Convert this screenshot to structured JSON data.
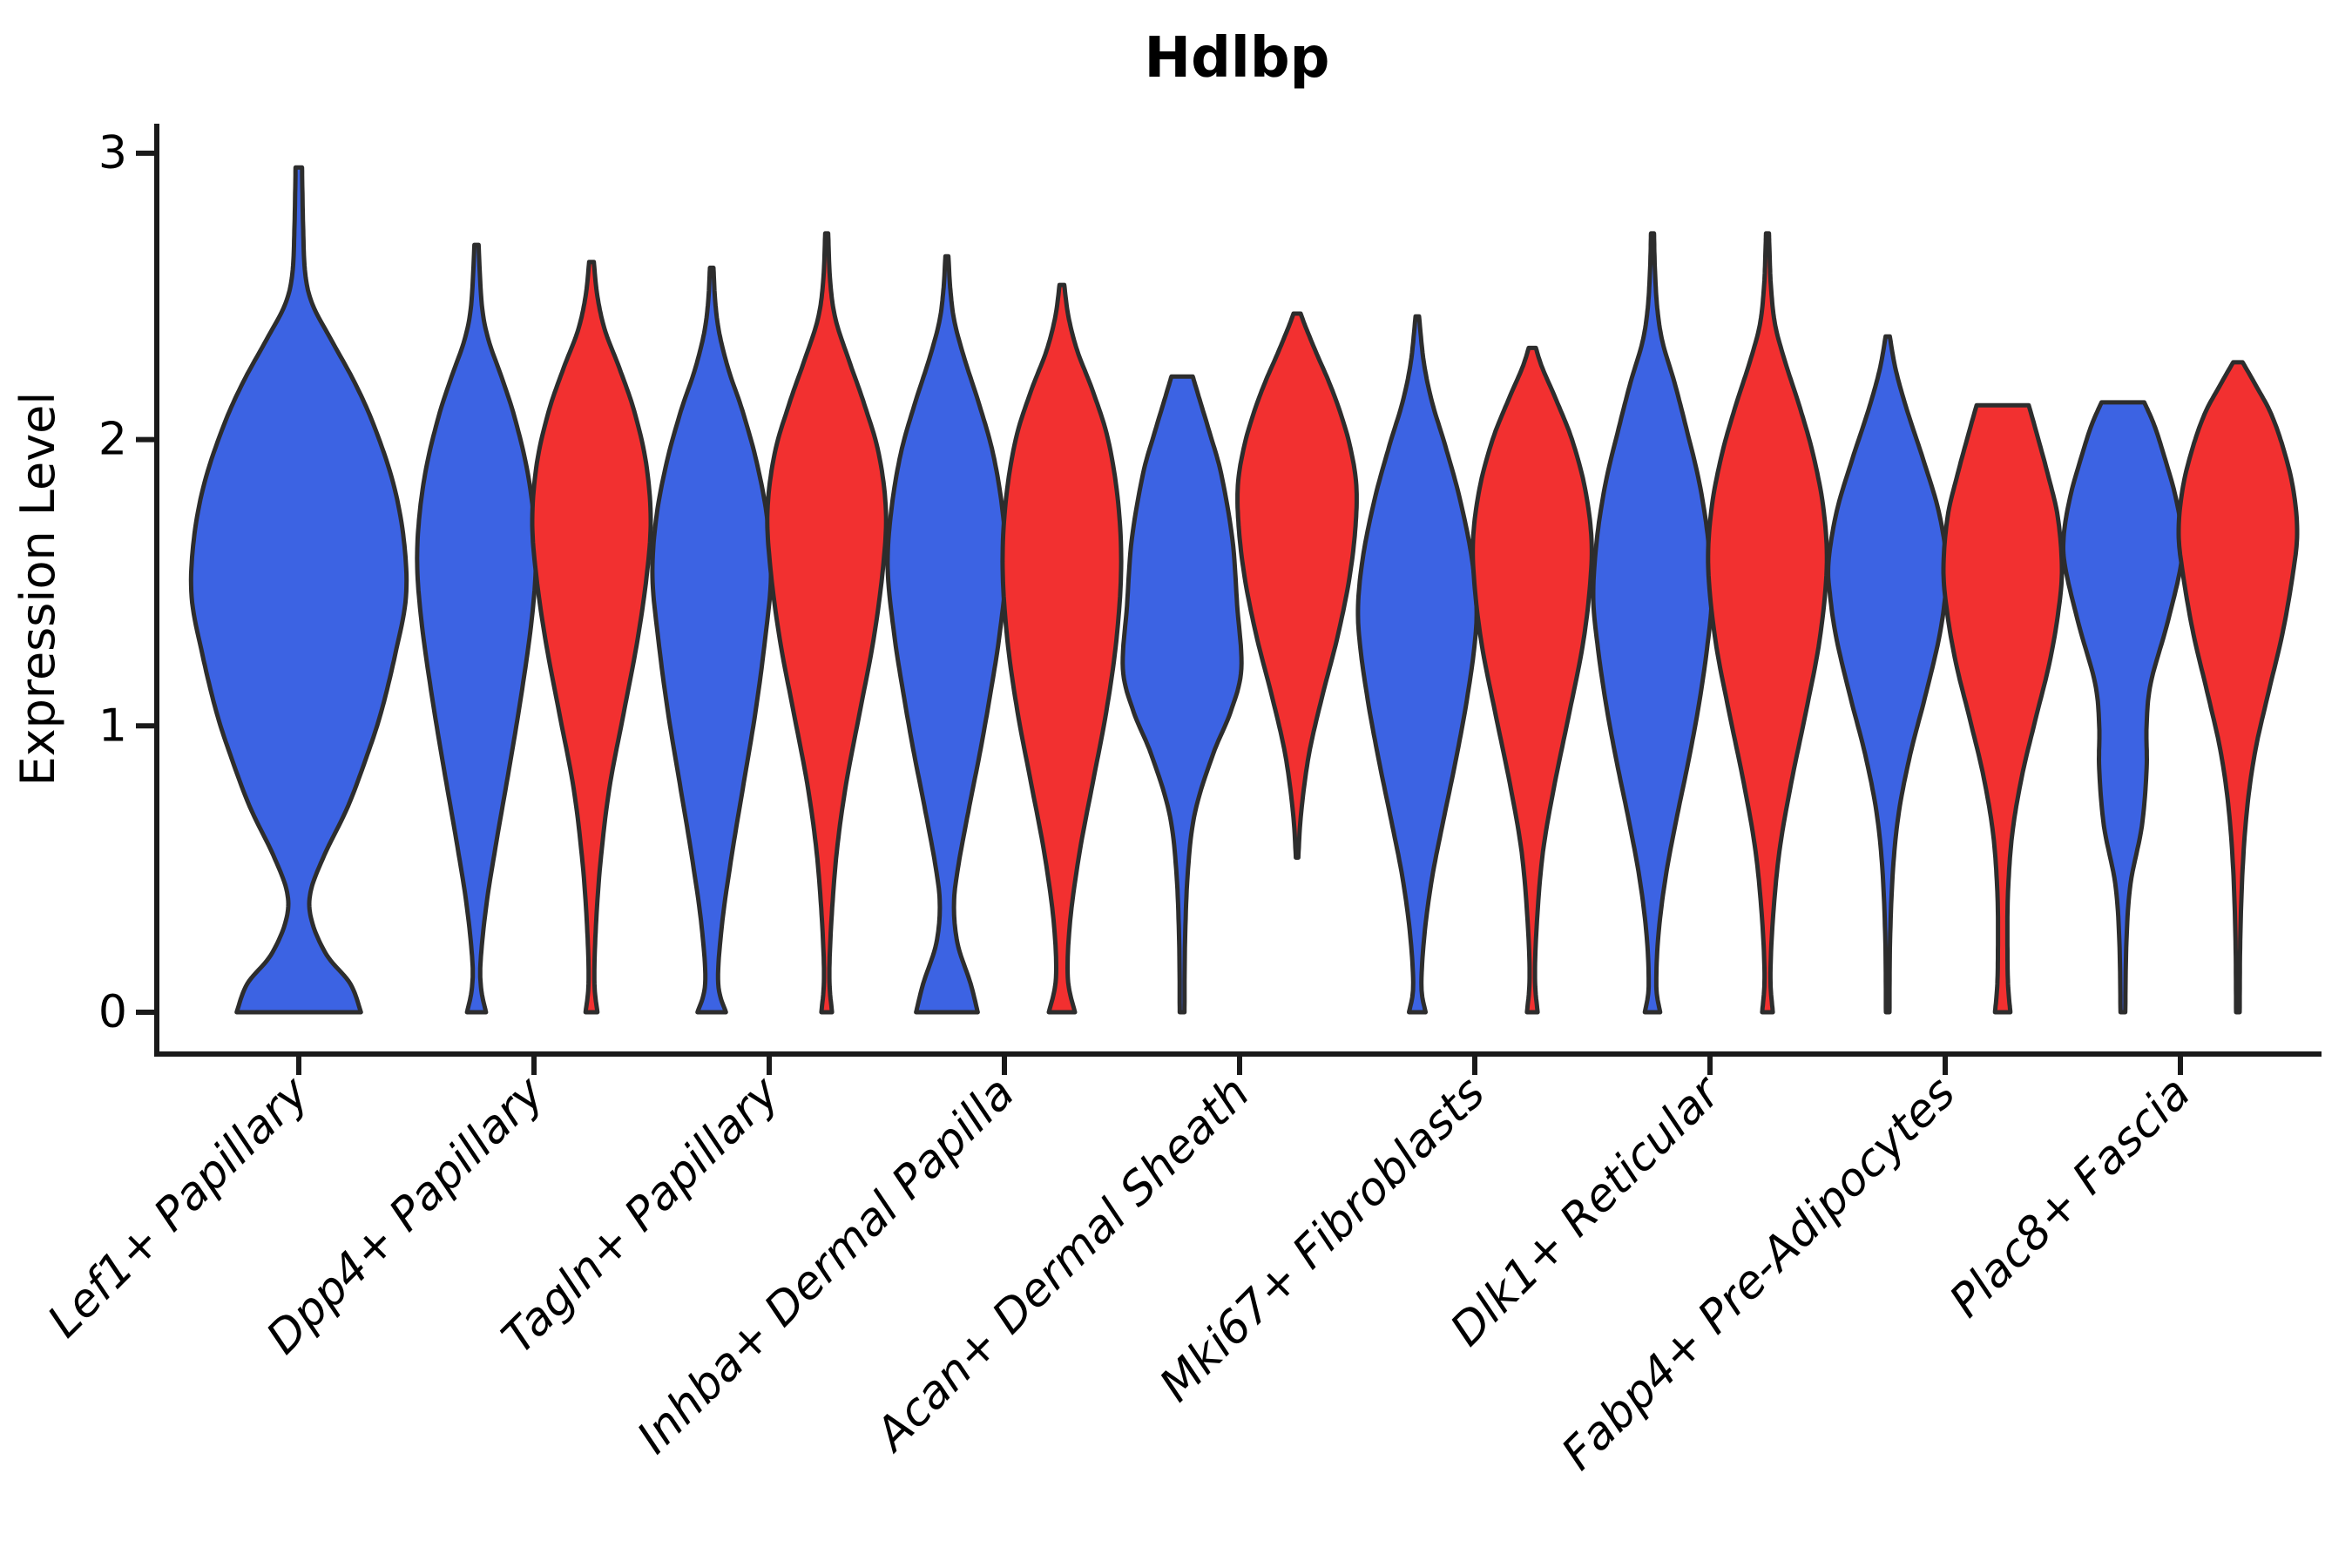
{
  "title": "Hdlbp",
  "axes": {
    "y_label": "Expression Level",
    "y_ticks": [
      {
        "label": "0",
        "value": 0
      },
      {
        "label": "1",
        "value": 1
      },
      {
        "label": "2",
        "value": 2
      },
      {
        "label": "3",
        "value": 3
      }
    ],
    "x_categories": [
      "Lef1+ Papillary",
      "Dpp4+ Papillary",
      "Tagln+ Papillary",
      "Inhba+ Dermal Papilla",
      "Acan+ Dermal Sheath",
      "Mki67+ Fibroblasts",
      "Dlk1+ Reticular",
      "Fabp4+ Pre-Adipocytes",
      "Plac8+ Fascia"
    ]
  },
  "colors": {
    "blue": "#3C63E3",
    "red": "#F23030",
    "outline": "#2D2D2D",
    "axis": "#1A1A1A",
    "background": "#FFFFFF"
  },
  "chart_data": {
    "type": "violin",
    "title": "Hdlbp",
    "ylabel": "Expression Level",
    "ylim": [
      0,
      3
    ],
    "y_ticks": [
      0,
      1,
      2,
      3
    ],
    "grid": false,
    "legend": "none",
    "categories": [
      "Lef1+ Papillary",
      "Dpp4+ Papillary",
      "Tagln+ Papillary",
      "Inhba+ Dermal Papilla",
      "Acan+ Dermal Sheath",
      "Mki67+ Fibroblasts",
      "Dlk1+ Reticular",
      "Fabp4+ Pre-Adipocytes",
      "Plac8+ Fascia"
    ],
    "note": "Split violin plot: blue violin left of tick, red violin right of tick; first category has a single wide blue violin. Profile points are [expression_value, half_width_percent_of_max].",
    "violins": [
      {
        "category_index": 0,
        "category": "Lef1+ Papillary",
        "color": "blue",
        "side": "center",
        "vmin": 0,
        "vmax": 2.95,
        "profile": [
          [
            0,
            58
          ],
          [
            0.1,
            48
          ],
          [
            0.2,
            26
          ],
          [
            0.32,
            12
          ],
          [
            0.42,
            11
          ],
          [
            0.55,
            24
          ],
          [
            0.72,
            46
          ],
          [
            0.9,
            64
          ],
          [
            1.05,
            77
          ],
          [
            1.25,
            90
          ],
          [
            1.45,
            100
          ],
          [
            1.65,
            98
          ],
          [
            1.85,
            88
          ],
          [
            2.05,
            70
          ],
          [
            2.2,
            52
          ],
          [
            2.35,
            30
          ],
          [
            2.47,
            13
          ],
          [
            2.58,
            6
          ],
          [
            2.75,
            4
          ],
          [
            2.95,
            3
          ]
        ]
      },
      {
        "category_index": 1,
        "category": "Dpp4+ Papillary",
        "color": "blue",
        "side": "left",
        "vmin": 0,
        "vmax": 2.68,
        "profile": [
          [
            0,
            16
          ],
          [
            0.08,
            8
          ],
          [
            0.18,
            7
          ],
          [
            0.38,
            17
          ],
          [
            0.6,
            34
          ],
          [
            0.85,
            55
          ],
          [
            1.1,
            75
          ],
          [
            1.35,
            92
          ],
          [
            1.55,
            100
          ],
          [
            1.72,
            97
          ],
          [
            1.9,
            85
          ],
          [
            2.08,
            64
          ],
          [
            2.22,
            42
          ],
          [
            2.35,
            20
          ],
          [
            2.47,
            9
          ],
          [
            2.68,
            3.5
          ]
        ]
      },
      {
        "category_index": 1,
        "category": "Dpp4+ Papillary",
        "color": "red",
        "side": "right",
        "vmin": 0,
        "vmax": 2.62,
        "profile": [
          [
            0,
            10
          ],
          [
            0.1,
            5
          ],
          [
            0.28,
            7
          ],
          [
            0.52,
            15
          ],
          [
            0.78,
            30
          ],
          [
            1.02,
            52
          ],
          [
            1.28,
            76
          ],
          [
            1.52,
            93
          ],
          [
            1.72,
            100
          ],
          [
            1.92,
            92
          ],
          [
            2.1,
            72
          ],
          [
            2.25,
            47
          ],
          [
            2.38,
            23
          ],
          [
            2.5,
            10
          ],
          [
            2.62,
            4
          ]
        ]
      },
      {
        "category_index": 2,
        "category": "Tagln+ Papillary",
        "color": "blue",
        "side": "left",
        "vmin": 0,
        "vmax": 2.6,
        "profile": [
          [
            0,
            24
          ],
          [
            0.1,
            11
          ],
          [
            0.3,
            17
          ],
          [
            0.55,
            34
          ],
          [
            0.8,
            54
          ],
          [
            1.05,
            74
          ],
          [
            1.3,
            90
          ],
          [
            1.52,
            100
          ],
          [
            1.72,
            94
          ],
          [
            1.92,
            76
          ],
          [
            2.1,
            52
          ],
          [
            2.24,
            29
          ],
          [
            2.37,
            13
          ],
          [
            2.48,
            6
          ],
          [
            2.6,
            3
          ]
        ]
      },
      {
        "category_index": 2,
        "category": "Tagln+ Papillary",
        "color": "red",
        "side": "right",
        "vmin": 0,
        "vmax": 2.72,
        "profile": [
          [
            0,
            9
          ],
          [
            0.12,
            4.5
          ],
          [
            0.32,
            8
          ],
          [
            0.56,
            17
          ],
          [
            0.8,
            33
          ],
          [
            1.05,
            56
          ],
          [
            1.3,
            79
          ],
          [
            1.55,
            95
          ],
          [
            1.75,
            100
          ],
          [
            1.95,
            88
          ],
          [
            2.12,
            64
          ],
          [
            2.28,
            37
          ],
          [
            2.42,
            15
          ],
          [
            2.55,
            6
          ],
          [
            2.72,
            2.5
          ]
        ]
      },
      {
        "category_index": 3,
        "category": "Inhba+ Dermal Papilla",
        "color": "blue",
        "side": "left",
        "vmin": 0,
        "vmax": 2.64,
        "profile": [
          [
            0,
            52
          ],
          [
            0.1,
            40
          ],
          [
            0.24,
            18
          ],
          [
            0.38,
            12
          ],
          [
            0.52,
            20
          ],
          [
            0.72,
            38
          ],
          [
            0.92,
            57
          ],
          [
            1.12,
            74
          ],
          [
            1.32,
            89
          ],
          [
            1.55,
            100
          ],
          [
            1.75,
            94
          ],
          [
            1.95,
            78
          ],
          [
            2.12,
            55
          ],
          [
            2.28,
            30
          ],
          [
            2.41,
            13
          ],
          [
            2.52,
            6
          ],
          [
            2.64,
            2.5
          ]
        ]
      },
      {
        "category_index": 3,
        "category": "Inhba+ Dermal Papilla",
        "color": "red",
        "side": "right",
        "vmin": 0,
        "vmax": 2.54,
        "profile": [
          [
            0,
            22
          ],
          [
            0.12,
            10
          ],
          [
            0.32,
            14
          ],
          [
            0.56,
            30
          ],
          [
            0.8,
            52
          ],
          [
            1.05,
            75
          ],
          [
            1.3,
            92
          ],
          [
            1.55,
            100
          ],
          [
            1.78,
            95
          ],
          [
            2.0,
            78
          ],
          [
            2.17,
            52
          ],
          [
            2.31,
            26
          ],
          [
            2.43,
            11
          ],
          [
            2.54,
            4
          ]
        ]
      },
      {
        "category_index": 4,
        "category": "Acan+ Dermal Sheath",
        "color": "blue",
        "side": "left",
        "vmin": 0,
        "vmax": 2.22,
        "flat_top": true,
        "profile": [
          [
            0,
            4
          ],
          [
            0.25,
            5
          ],
          [
            0.5,
            10
          ],
          [
            0.7,
            22
          ],
          [
            0.9,
            52
          ],
          [
            1.05,
            82
          ],
          [
            1.2,
            100
          ],
          [
            1.42,
            93
          ],
          [
            1.65,
            85
          ],
          [
            1.88,
            66
          ],
          [
            2.02,
            47
          ],
          [
            2.13,
            31
          ],
          [
            2.22,
            18
          ]
        ]
      },
      {
        "category_index": 4,
        "category": "Acan+ Dermal Sheath",
        "color": "red",
        "side": "right",
        "vmin": 0.54,
        "vmax": 2.44,
        "profile": [
          [
            0.54,
            2
          ],
          [
            0.7,
            7
          ],
          [
            0.9,
            20
          ],
          [
            1.1,
            42
          ],
          [
            1.3,
            67
          ],
          [
            1.5,
            87
          ],
          [
            1.68,
            98
          ],
          [
            1.84,
            100
          ],
          [
            1.98,
            89
          ],
          [
            2.1,
            72
          ],
          [
            2.2,
            54
          ],
          [
            2.3,
            33
          ],
          [
            2.39,
            15
          ],
          [
            2.44,
            6
          ]
        ]
      },
      {
        "category_index": 5,
        "category": "Mki67+ Fibroblasts",
        "color": "blue",
        "side": "left",
        "vmin": 0,
        "vmax": 2.43,
        "profile": [
          [
            0,
            14
          ],
          [
            0.09,
            7
          ],
          [
            0.27,
            12
          ],
          [
            0.47,
            25
          ],
          [
            0.67,
            44
          ],
          [
            0.87,
            64
          ],
          [
            1.07,
            82
          ],
          [
            1.27,
            96
          ],
          [
            1.42,
            100
          ],
          [
            1.6,
            91
          ],
          [
            1.8,
            71
          ],
          [
            1.98,
            47
          ],
          [
            2.13,
            25
          ],
          [
            2.27,
            11
          ],
          [
            2.43,
            3
          ]
        ]
      },
      {
        "category_index": 5,
        "category": "Mki67+ Fibroblasts",
        "color": "red",
        "side": "right",
        "vmin": 0,
        "vmax": 2.32,
        "profile": [
          [
            0,
            9
          ],
          [
            0.12,
            4.5
          ],
          [
            0.32,
            8
          ],
          [
            0.56,
            18
          ],
          [
            0.8,
            38
          ],
          [
            1.05,
            63
          ],
          [
            1.28,
            85
          ],
          [
            1.48,
            97
          ],
          [
            1.65,
            100
          ],
          [
            1.83,
            89
          ],
          [
            2.0,
            67
          ],
          [
            2.14,
            40
          ],
          [
            2.25,
            17
          ],
          [
            2.32,
            6
          ]
        ]
      },
      {
        "category_index": 6,
        "category": "Dlk1+ Reticular",
        "color": "blue",
        "side": "left",
        "vmin": 0,
        "vmax": 2.72,
        "profile": [
          [
            0,
            13
          ],
          [
            0.09,
            6.5
          ],
          [
            0.27,
            10
          ],
          [
            0.47,
            22
          ],
          [
            0.67,
            40
          ],
          [
            0.87,
            60
          ],
          [
            1.07,
            78
          ],
          [
            1.27,
            92
          ],
          [
            1.45,
            100
          ],
          [
            1.65,
            94
          ],
          [
            1.85,
            79
          ],
          [
            2.04,
            57
          ],
          [
            2.2,
            37
          ],
          [
            2.34,
            17
          ],
          [
            2.46,
            8
          ],
          [
            2.6,
            4
          ],
          [
            2.72,
            2.5
          ]
        ]
      },
      {
        "category_index": 6,
        "category": "Dlk1+ Reticular",
        "color": "red",
        "side": "right",
        "vmin": 0,
        "vmax": 2.72,
        "profile": [
          [
            0,
            9
          ],
          [
            0.12,
            5
          ],
          [
            0.32,
            9
          ],
          [
            0.56,
            20
          ],
          [
            0.8,
            40
          ],
          [
            1.05,
            65
          ],
          [
            1.3,
            88
          ],
          [
            1.55,
            100
          ],
          [
            1.75,
            95
          ],
          [
            1.94,
            78
          ],
          [
            2.11,
            55
          ],
          [
            2.27,
            30
          ],
          [
            2.4,
            13
          ],
          [
            2.53,
            6
          ],
          [
            2.65,
            3.5
          ],
          [
            2.72,
            2.5
          ]
        ]
      },
      {
        "category_index": 7,
        "category": "Fabp4+ Pre-Adipocytes",
        "color": "blue",
        "side": "left",
        "vmin": 0,
        "vmax": 2.36,
        "profile": [
          [
            0,
            3
          ],
          [
            0.25,
            4
          ],
          [
            0.5,
            9
          ],
          [
            0.7,
            19
          ],
          [
            0.9,
            38
          ],
          [
            1.1,
            63
          ],
          [
            1.3,
            86
          ],
          [
            1.45,
            97
          ],
          [
            1.57,
            100
          ],
          [
            1.75,
            86
          ],
          [
            1.93,
            60
          ],
          [
            2.1,
            33
          ],
          [
            2.24,
            14
          ],
          [
            2.36,
            3.5
          ]
        ]
      },
      {
        "category_index": 7,
        "category": "Fabp4+ Pre-Adipocytes",
        "color": "red",
        "side": "right",
        "vmin": 0,
        "vmax": 2.12,
        "flat_top": true,
        "profile": [
          [
            0,
            13
          ],
          [
            0.1,
            9
          ],
          [
            0.25,
            8
          ],
          [
            0.42,
            9
          ],
          [
            0.62,
            16
          ],
          [
            0.82,
            32
          ],
          [
            1.02,
            55
          ],
          [
            1.22,
            79
          ],
          [
            1.4,
            94
          ],
          [
            1.55,
            100
          ],
          [
            1.73,
            93
          ],
          [
            1.88,
            76
          ],
          [
            2.01,
            59
          ],
          [
            2.12,
            44
          ]
        ]
      },
      {
        "category_index": 8,
        "category": "Plac8+ Fascia",
        "color": "blue",
        "side": "left",
        "vmin": 0,
        "vmax": 2.13,
        "flat_top": true,
        "profile": [
          [
            0,
            4
          ],
          [
            0.25,
            6
          ],
          [
            0.45,
            13
          ],
          [
            0.65,
            32
          ],
          [
            0.85,
            40
          ],
          [
            1.0,
            40
          ],
          [
            1.15,
            47
          ],
          [
            1.35,
            74
          ],
          [
            1.55,
            97
          ],
          [
            1.66,
            100
          ],
          [
            1.8,
            89
          ],
          [
            1.94,
            70
          ],
          [
            2.05,
            53
          ],
          [
            2.13,
            36
          ]
        ]
      },
      {
        "category_index": 8,
        "category": "Plac8+ Fascia",
        "color": "red",
        "side": "right",
        "vmin": 0,
        "vmax": 2.27,
        "profile": [
          [
            0,
            3
          ],
          [
            0.25,
            4
          ],
          [
            0.5,
            8
          ],
          [
            0.72,
            16
          ],
          [
            0.92,
            30
          ],
          [
            1.12,
            52
          ],
          [
            1.32,
            75
          ],
          [
            1.52,
            92
          ],
          [
            1.67,
            100
          ],
          [
            1.82,
            94
          ],
          [
            1.96,
            78
          ],
          [
            2.09,
            56
          ],
          [
            2.19,
            30
          ],
          [
            2.27,
            8
          ]
        ]
      }
    ]
  }
}
